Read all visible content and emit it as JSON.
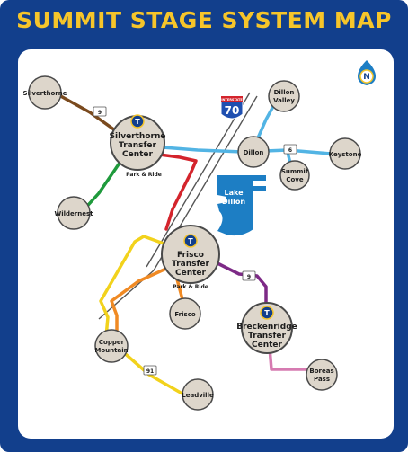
{
  "title": "SUMMIT STAGE SYSTEM MAP",
  "colors": {
    "frame": "#123f8c",
    "title": "#f6c52a",
    "stop_fill": "#ddd6cb",
    "lake": "#1d7ec4",
    "route_brown": "#7a4a1e",
    "route_green": "#1f9a3c",
    "route_blue": "#52b4e4",
    "route_red": "#d4242c",
    "route_yellow": "#f2d21c",
    "route_orange": "#f08a24",
    "route_purple": "#7d2a86",
    "route_pink": "#d67bb1",
    "highway": "#555555"
  },
  "hubs": {
    "silverthorne": {
      "line1": "Silverthorne",
      "line2": "Transfer",
      "line3": "Center",
      "note": "Park & Ride",
      "icon": "T"
    },
    "frisco": {
      "line1": "Frisco",
      "line2": "Transfer",
      "line3": "Center",
      "note": "Park & Ride",
      "icon": "T"
    },
    "breckenridge": {
      "line1": "Breckenridge",
      "line2": "Transfer",
      "line3": "Center",
      "icon": "T"
    }
  },
  "stops": {
    "silverthorne": "Silverthorne",
    "wildernest": "Wildernest",
    "dillon": "Dillon",
    "dillon_valley": {
      "line1": "Dillon",
      "line2": "Valley"
    },
    "keystone": "Keystone",
    "summit_cove": {
      "line1": "Summit",
      "line2": "Cove"
    },
    "frisco": "Frisco",
    "copper_mountain": {
      "line1": "Copper",
      "line2": "Mountain"
    },
    "leadville": "Leadville",
    "boreas_pass": {
      "line1": "Boreas",
      "line2": "Pass"
    }
  },
  "lake": {
    "line1": "Lake",
    "line2": "Dillon"
  },
  "highways": {
    "i70": {
      "top": "INTERSTATE",
      "num": "70"
    },
    "us6": "6",
    "sh9_north": "9",
    "sh9_south": "9",
    "sh91": "91"
  },
  "compass_icon": {
    "letter": "N",
    "name": "north-arrow-icon"
  }
}
